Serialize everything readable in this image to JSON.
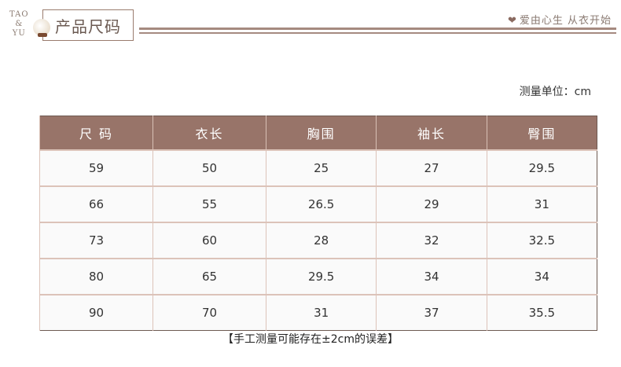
{
  "header": {
    "logo_lines": [
      "TAO",
      "&",
      "YU"
    ],
    "title": "产品尺码",
    "slogan": "爱由心生  从衣开始",
    "heart_icon": "heart-icon"
  },
  "unit_label": "测量单位：cm",
  "table": {
    "headers": [
      "尺 码",
      "衣长",
      "胸围",
      "袖长",
      "臀围"
    ],
    "rows": [
      [
        "59",
        "50",
        "25",
        "27",
        "29.5"
      ],
      [
        "66",
        "55",
        "26.5",
        "29",
        "31"
      ],
      [
        "73",
        "60",
        "28",
        "32",
        "32.5"
      ],
      [
        "80",
        "65",
        "29.5",
        "34",
        "34"
      ],
      [
        "90",
        "70",
        "31",
        "37",
        "35.5"
      ]
    ]
  },
  "note": "【手工测量可能存在±2cm的误差】",
  "colors": {
    "header_bg": "#987469",
    "line": "#a58a80"
  }
}
